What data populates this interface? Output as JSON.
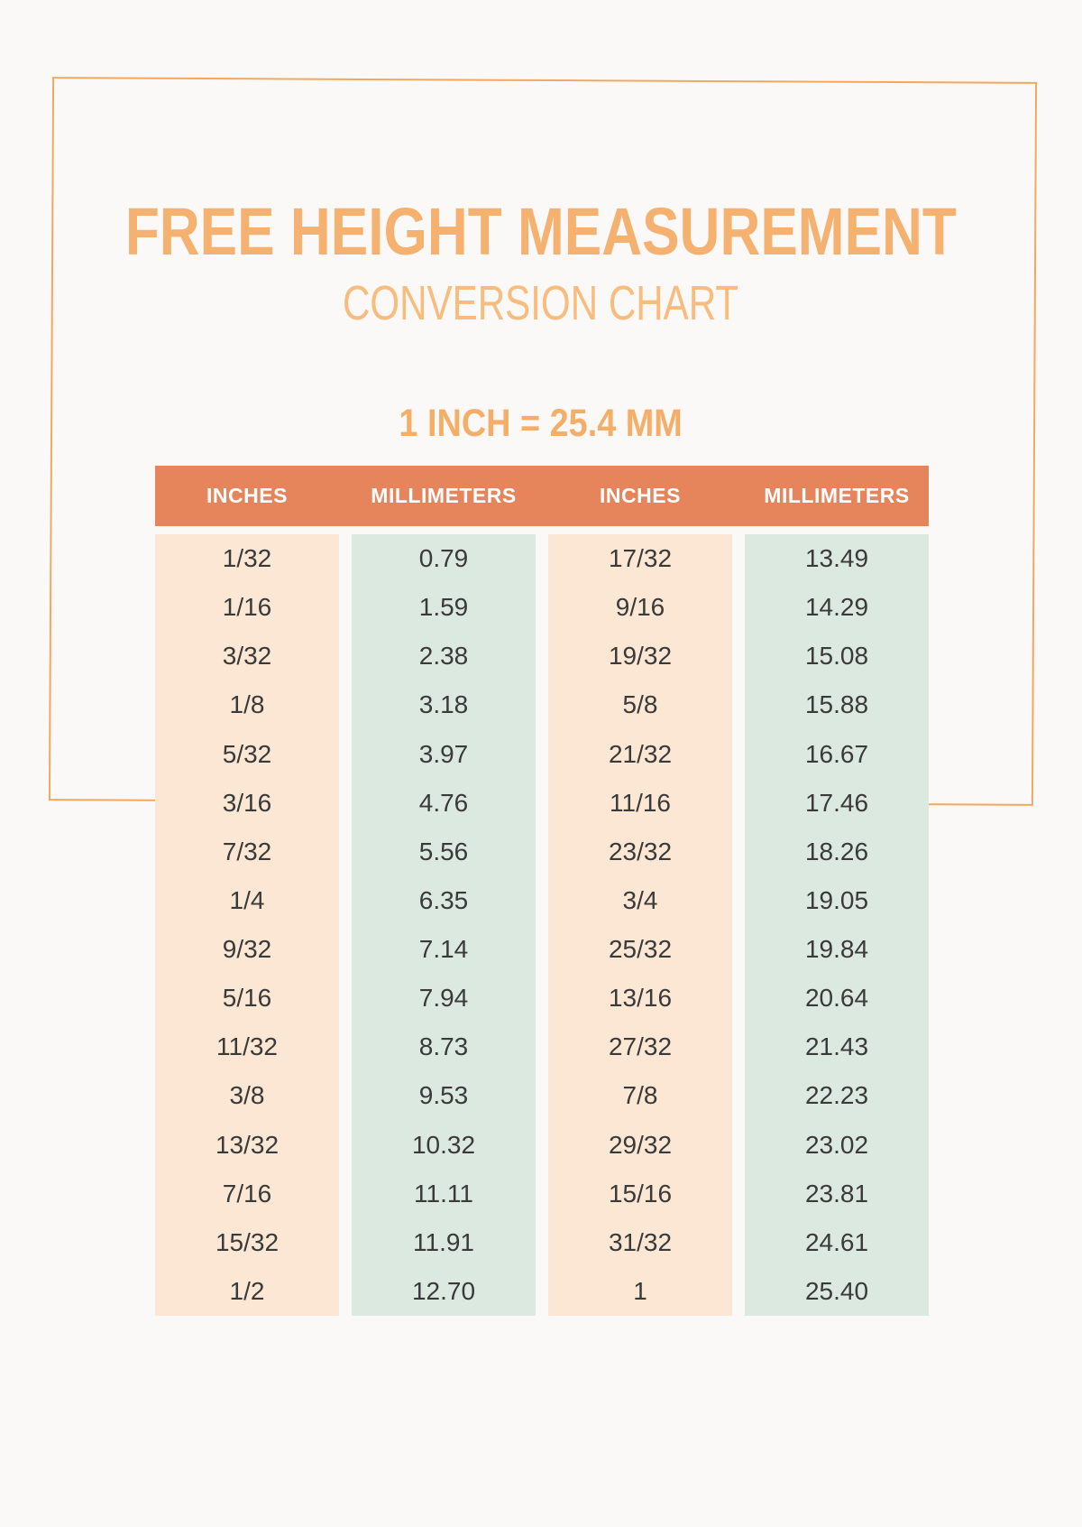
{
  "header": {
    "title": "FREE HEIGHT MEASUREMENT",
    "subtitle": "CONVERSION CHART",
    "formula": "1 INCH = 25.4 MM"
  },
  "colors": {
    "page_bg": "#FAF9F7",
    "frame_border": "#F2A95F",
    "title_orange": "#F5B170",
    "subtitle_orange": "#F7BC7E",
    "formula_orange": "#F5AE68",
    "table_header_bg": "#E6845C",
    "table_header_text": "#FFFFFF",
    "inches_column_bg": "#FBE7D3",
    "millimeters_column_bg": "#DCE9E1",
    "cell_text": "#3A3A3A"
  },
  "chart_data": {
    "type": "table",
    "title": "FREE HEIGHT MEASUREMENT CONVERSION CHART",
    "annotation": "1 INCH = 25.4 MM",
    "columns": [
      "INCHES",
      "MILLIMETERS",
      "INCHES",
      "MILLIMETERS"
    ],
    "column_types": [
      "inches",
      "mm",
      "inches",
      "mm"
    ],
    "rows": [
      [
        "1/32",
        "0.79",
        "17/32",
        "13.49"
      ],
      [
        "1/16",
        "1.59",
        "9/16",
        "14.29"
      ],
      [
        "3/32",
        "2.38",
        "19/32",
        "15.08"
      ],
      [
        "1/8",
        "3.18",
        "5/8",
        "15.88"
      ],
      [
        "5/32",
        "3.97",
        "21/32",
        "16.67"
      ],
      [
        "3/16",
        "4.76",
        "11/16",
        "17.46"
      ],
      [
        "7/32",
        "5.56",
        "23/32",
        "18.26"
      ],
      [
        "1/4",
        "6.35",
        "3/4",
        "19.05"
      ],
      [
        "9/32",
        "7.14",
        "25/32",
        "19.84"
      ],
      [
        "5/16",
        "7.94",
        "13/16",
        "20.64"
      ],
      [
        "11/32",
        "8.73",
        "27/32",
        "21.43"
      ],
      [
        "3/8",
        "9.53",
        "7/8",
        "22.23"
      ],
      [
        "13/32",
        "10.32",
        "29/32",
        "23.02"
      ],
      [
        "7/16",
        "11.11",
        "15/16",
        "23.81"
      ],
      [
        "15/32",
        "11.91",
        "31/32",
        "24.61"
      ],
      [
        "1/2",
        "12.70",
        "1",
        "25.40"
      ]
    ]
  }
}
